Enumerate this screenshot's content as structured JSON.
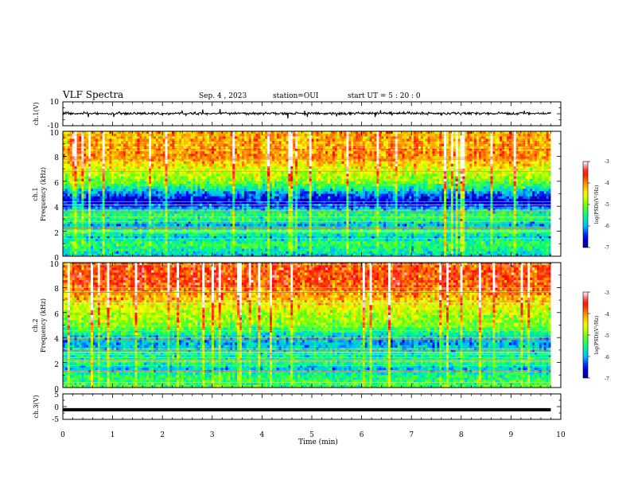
{
  "header": {
    "title": "VLF Spectra",
    "date": "Sep. 4 , 2023",
    "station": "station=OUI",
    "start": "start  UT  =   5  : 20 : 0"
  },
  "chart_data": [
    {
      "type": "line",
      "ylabel": "ch.1(V)",
      "ylim": [
        -10,
        10
      ],
      "y_ticks": [
        "10",
        "-10"
      ],
      "x": [
        0,
        10
      ],
      "series": [
        {
          "values": "broadband noisy trace centred near 0 V, amplitude about ±3 V with occasional spikes"
        }
      ]
    },
    {
      "type": "heatmap",
      "ylabel_top": "ch.1",
      "ylabel": "Frequency (kHz)",
      "ylim": [
        0,
        10
      ],
      "y_ticks": [
        "0",
        "2",
        "4",
        "6",
        "8",
        "10"
      ],
      "xlim": [
        0,
        9.8
      ],
      "colorbar": {
        "label": "log(PSD)(V²/Hz)",
        "min": -7,
        "max": -3,
        "ticks": [
          "-3",
          "-4",
          "-5",
          "-6",
          "-7"
        ]
      },
      "colorscale": [
        "#00008b",
        "#0000ff",
        "#00bfff",
        "#00ff7f",
        "#7fff00",
        "#ffff00",
        "#ff8c00",
        "#ff0000",
        "#ffffff"
      ],
      "profile_log_psd": [
        [
          0,
          -5.9
        ],
        [
          0.5,
          -5.6
        ],
        [
          1,
          -5.3
        ],
        [
          1.5,
          -5.9
        ],
        [
          2,
          -5.3
        ],
        [
          2.5,
          -6.0
        ],
        [
          3,
          -5.4
        ],
        [
          3.5,
          -5.5
        ],
        [
          4,
          -6.5
        ],
        [
          4.5,
          -6.6
        ],
        [
          5,
          -6.2
        ],
        [
          5.5,
          -5.5
        ],
        [
          6,
          -5.0
        ],
        [
          7,
          -4.6
        ],
        [
          8,
          -4.0
        ],
        [
          9,
          -4.1
        ],
        [
          10,
          -4.2
        ]
      ]
    },
    {
      "type": "heatmap",
      "ylabel_top": "ch.2",
      "ylabel": "Frequency (kHz)",
      "ylim": [
        0,
        10
      ],
      "y_ticks": [
        "0",
        "2",
        "4",
        "6",
        "8",
        "10"
      ],
      "xlim": [
        0,
        9.8
      ],
      "colorbar": {
        "label": "log(PSD)(V²/Hz)",
        "min": -7,
        "max": -3,
        "ticks": [
          "-3",
          "-4",
          "-5",
          "-6",
          "-7"
        ]
      },
      "colorscale": [
        "#00008b",
        "#0000ff",
        "#00bfff",
        "#00ff7f",
        "#7fff00",
        "#ffff00",
        "#ff8c00",
        "#ff0000",
        "#ffffff"
      ],
      "profile_log_psd": [
        [
          0,
          -5.3
        ],
        [
          0.5,
          -5.3
        ],
        [
          1,
          -5.5
        ],
        [
          1.5,
          -5.9
        ],
        [
          2,
          -5.4
        ],
        [
          2.5,
          -5.6
        ],
        [
          3,
          -5.8
        ],
        [
          3.5,
          -6.0
        ],
        [
          4,
          -5.9
        ],
        [
          4.5,
          -5.4
        ],
        [
          5,
          -5.0
        ],
        [
          5.5,
          -4.9
        ],
        [
          6,
          -4.8
        ],
        [
          7,
          -4.3
        ],
        [
          8,
          -3.8
        ],
        [
          9,
          -3.7
        ],
        [
          10,
          -3.8
        ]
      ]
    },
    {
      "type": "line",
      "ylabel": "ch.3(V)",
      "ylim": [
        -5,
        5
      ],
      "y_ticks": [
        "5",
        "0",
        "-5"
      ],
      "x": [
        0,
        9.8
      ],
      "series": [
        {
          "values": [
            -1.2,
            -1.2
          ]
        }
      ],
      "xlabel": "Time (min)",
      "xlim": [
        0,
        10
      ],
      "x_ticks": [
        "0",
        "1",
        "2",
        "3",
        "4",
        "5",
        "6",
        "7",
        "8",
        "9",
        "10"
      ]
    }
  ]
}
